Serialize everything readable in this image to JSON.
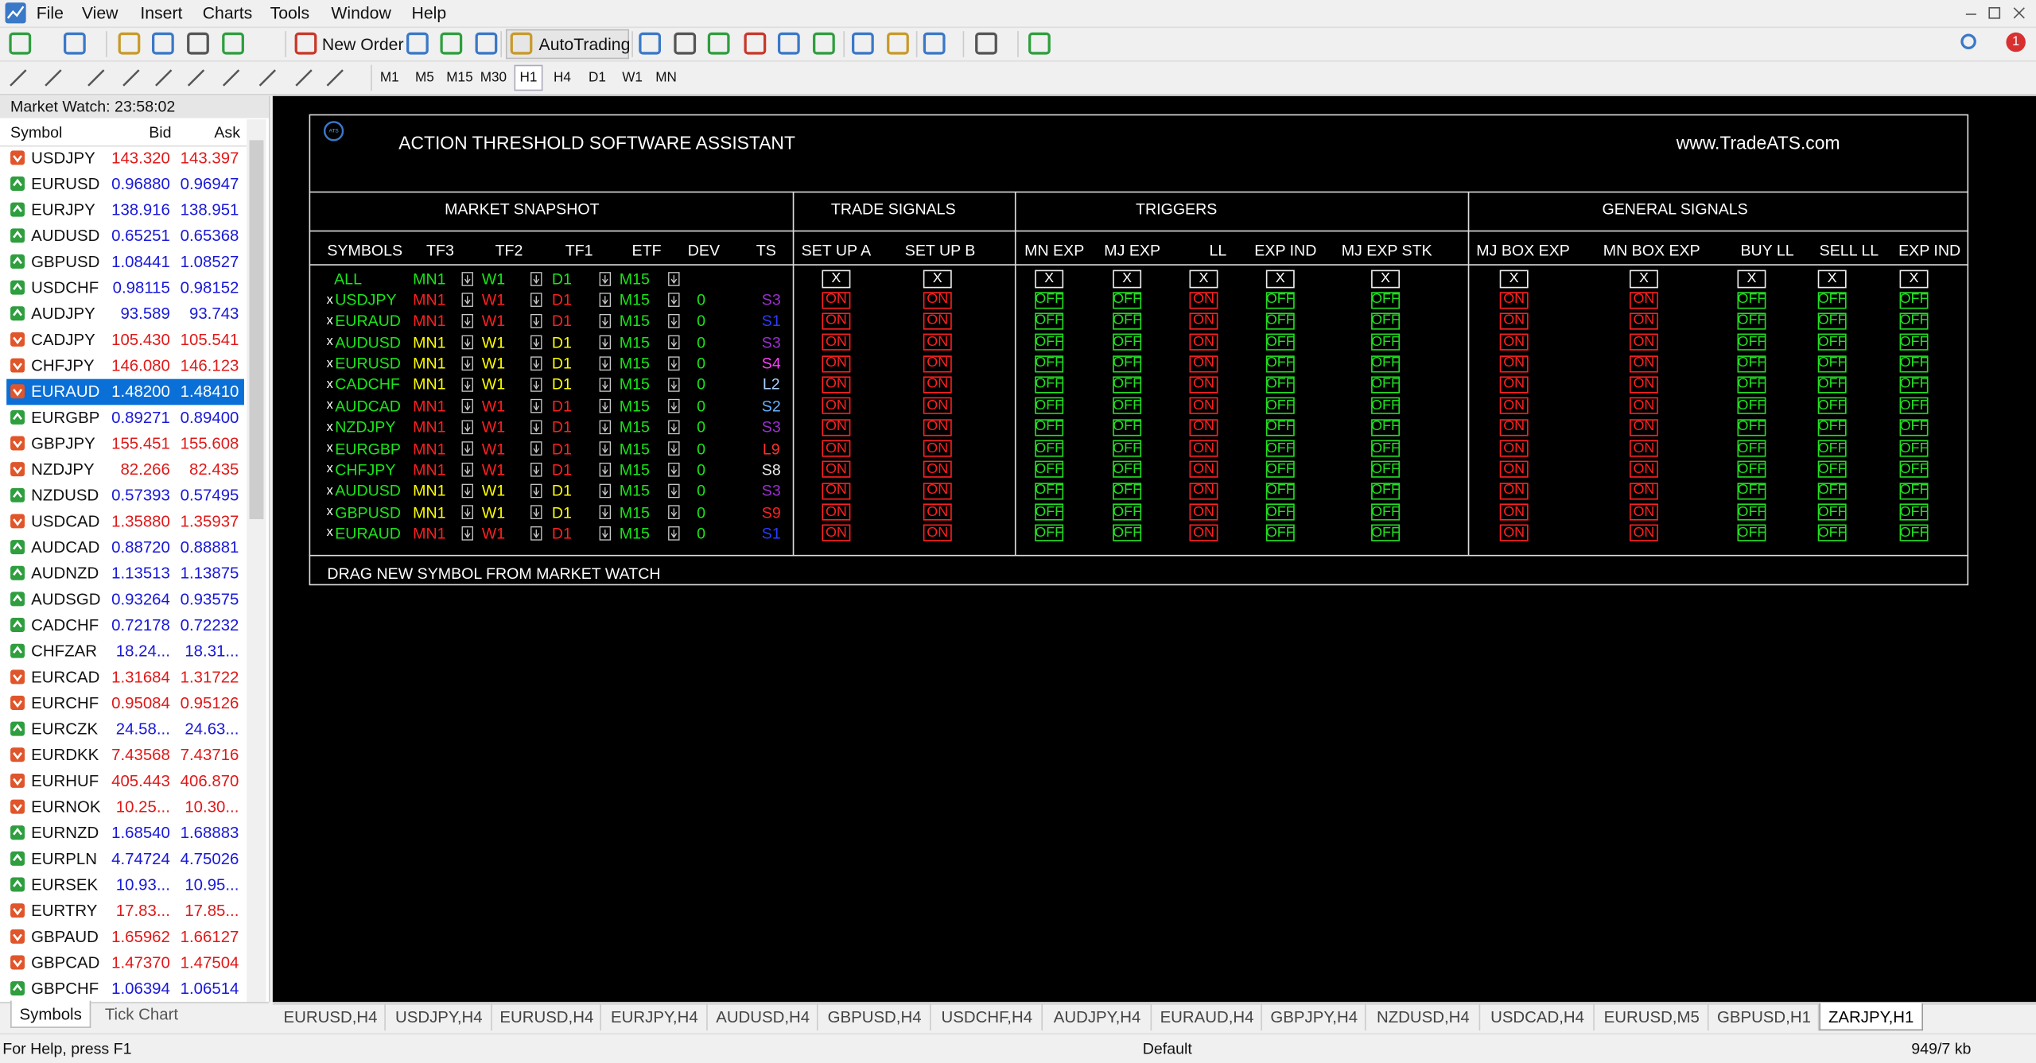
{
  "menu": {
    "items": [
      "File",
      "View",
      "Insert",
      "Charts",
      "Tools",
      "Window",
      "Help"
    ]
  },
  "toolbar": {
    "new_order": "New Order",
    "autotrading": "AutoTrading",
    "timeframes": [
      {
        "label": "M1",
        "active": false
      },
      {
        "label": "M5",
        "active": false
      },
      {
        "label": "M15",
        "active": false
      },
      {
        "label": "M30",
        "active": false
      },
      {
        "label": "H1",
        "active": true
      },
      {
        "label": "H4",
        "active": false
      },
      {
        "label": "D1",
        "active": false
      },
      {
        "label": "W1",
        "active": false
      },
      {
        "label": "MN",
        "active": false
      }
    ],
    "notifications": 1
  },
  "market_watch": {
    "title": "Market Watch: 23:58:02",
    "columns": [
      "Symbol",
      "Bid",
      "Ask"
    ],
    "trend_colors": {
      "up": {
        "price": "#1818d8",
        "icon": "#2e9e3e"
      },
      "down": {
        "price": "#e01818",
        "icon": "#e0552a"
      }
    },
    "rows": [
      {
        "symbol": "USDJPY",
        "bid": "143.320",
        "ask": "143.397",
        "trend": "down",
        "selected": false
      },
      {
        "symbol": "EURUSD",
        "bid": "0.96880",
        "ask": "0.96947",
        "trend": "up",
        "selected": false
      },
      {
        "symbol": "EURJPY",
        "bid": "138.916",
        "ask": "138.951",
        "trend": "up",
        "selected": false
      },
      {
        "symbol": "AUDUSD",
        "bid": "0.65251",
        "ask": "0.65368",
        "trend": "up",
        "selected": false
      },
      {
        "symbol": "GBPUSD",
        "bid": "1.08441",
        "ask": "1.08527",
        "trend": "up",
        "selected": false
      },
      {
        "symbol": "USDCHF",
        "bid": "0.98115",
        "ask": "0.98152",
        "trend": "up",
        "selected": false
      },
      {
        "symbol": "AUDJPY",
        "bid": "93.589",
        "ask": "93.743",
        "trend": "up",
        "selected": false
      },
      {
        "symbol": "CADJPY",
        "bid": "105.430",
        "ask": "105.541",
        "trend": "down",
        "selected": false
      },
      {
        "symbol": "CHFJPY",
        "bid": "146.080",
        "ask": "146.123",
        "trend": "down",
        "selected": false
      },
      {
        "symbol": "EURAUD",
        "bid": "1.48200",
        "ask": "1.48410",
        "trend": "down",
        "selected": true
      },
      {
        "symbol": "EURGBP",
        "bid": "0.89271",
        "ask": "0.89400",
        "trend": "up",
        "selected": false
      },
      {
        "symbol": "GBPJPY",
        "bid": "155.451",
        "ask": "155.608",
        "trend": "down",
        "selected": false
      },
      {
        "symbol": "NZDJPY",
        "bid": "82.266",
        "ask": "82.435",
        "trend": "down",
        "selected": false
      },
      {
        "symbol": "NZDUSD",
        "bid": "0.57393",
        "ask": "0.57495",
        "trend": "up",
        "selected": false
      },
      {
        "symbol": "USDCAD",
        "bid": "1.35880",
        "ask": "1.35937",
        "trend": "down",
        "selected": false
      },
      {
        "symbol": "AUDCAD",
        "bid": "0.88720",
        "ask": "0.88881",
        "trend": "up",
        "selected": false
      },
      {
        "symbol": "AUDNZD",
        "bid": "1.13513",
        "ask": "1.13875",
        "trend": "up",
        "selected": false
      },
      {
        "symbol": "AUDSGD",
        "bid": "0.93264",
        "ask": "0.93575",
        "trend": "up",
        "selected": false
      },
      {
        "symbol": "CADCHF",
        "bid": "0.72178",
        "ask": "0.72232",
        "trend": "up",
        "selected": false
      },
      {
        "symbol": "CHFZAR",
        "bid": "18.24...",
        "ask": "18.31...",
        "trend": "up",
        "selected": false
      },
      {
        "symbol": "EURCAD",
        "bid": "1.31684",
        "ask": "1.31722",
        "trend": "down",
        "selected": false
      },
      {
        "symbol": "EURCHF",
        "bid": "0.95084",
        "ask": "0.95126",
        "trend": "down",
        "selected": false
      },
      {
        "symbol": "EURCZK",
        "bid": "24.58...",
        "ask": "24.63...",
        "trend": "up",
        "selected": false
      },
      {
        "symbol": "EURDKK",
        "bid": "7.43568",
        "ask": "7.43716",
        "trend": "down",
        "selected": false
      },
      {
        "symbol": "EURHUF",
        "bid": "405.443",
        "ask": "406.870",
        "trend": "down",
        "selected": false
      },
      {
        "symbol": "EURNOK",
        "bid": "10.25...",
        "ask": "10.30...",
        "trend": "down",
        "selected": false
      },
      {
        "symbol": "EURNZD",
        "bid": "1.68540",
        "ask": "1.68883",
        "trend": "up",
        "selected": false
      },
      {
        "symbol": "EURPLN",
        "bid": "4.74724",
        "ask": "4.75026",
        "trend": "up",
        "selected": false
      },
      {
        "symbol": "EURSEK",
        "bid": "10.93...",
        "ask": "10.95...",
        "trend": "up",
        "selected": false
      },
      {
        "symbol": "EURTRY",
        "bid": "17.83...",
        "ask": "17.85...",
        "trend": "down",
        "selected": false
      },
      {
        "symbol": "GBPAUD",
        "bid": "1.65962",
        "ask": "1.66127",
        "trend": "down",
        "selected": false
      },
      {
        "symbol": "GBPCAD",
        "bid": "1.47370",
        "ask": "1.47504",
        "trend": "down",
        "selected": false
      },
      {
        "symbol": "GBPCHF",
        "bid": "1.06394",
        "ask": "1.06514",
        "trend": "up",
        "selected": false
      }
    ],
    "tabs": [
      {
        "label": "Symbols",
        "active": true
      },
      {
        "label": "Tick Chart",
        "active": false
      }
    ]
  },
  "ats_panel": {
    "logo": "ATS",
    "title": "ACTION THRESHOLD SOFTWARE ASSISTANT",
    "url": "www.TradeATS.com",
    "sections": [
      "MARKET SNAPSHOT",
      "TRADE SIGNALS",
      "TRIGGERS",
      "GENERAL SIGNALS"
    ],
    "columns": [
      "SYMBOLS",
      "TF3",
      "TF2",
      "TF1",
      "ETF",
      "DEV",
      "TS",
      "SET UP A",
      "SET UP B",
      "MN EXP",
      "MJ EXP",
      "LL",
      "EXP IND",
      "MJ EXP STK",
      "MJ BOX EXP",
      "MN BOX EXP",
      "BUY LL",
      "SELL LL",
      "EXP IND"
    ],
    "symbol_color": "#19e619",
    "state_colors": {
      "ON": "#ff2020",
      "OFF": "#22e022"
    },
    "all_row": {
      "label": "ALL",
      "color": "#19e619",
      "timeframes": [
        "MN1",
        "W1",
        "D1",
        "M15"
      ],
      "toggles": [
        "X",
        "X",
        "X",
        "X",
        "X",
        "X",
        "X",
        "X",
        "X",
        "X",
        "X",
        "X"
      ]
    },
    "rows": [
      {
        "remove": "x",
        "symbol": "USDJPY",
        "tf3": "MN1",
        "tf2": "W1",
        "tf1": "D1",
        "etf": "M15",
        "dev": "0",
        "ts": "S3",
        "tf_color": "#ff2020",
        "ts_color": "#9b30d0",
        "signals": [
          "ON",
          "ON",
          "OFF",
          "OFF",
          "ON",
          "OFF",
          "OFF",
          "ON",
          "ON",
          "OFF",
          "OFF",
          "OFF"
        ]
      },
      {
        "remove": "x",
        "symbol": "EURAUD",
        "tf3": "MN1",
        "tf2": "W1",
        "tf1": "D1",
        "etf": "M15",
        "dev": "0",
        "ts": "S1",
        "tf_color": "#ff2020",
        "ts_color": "#2a3cff",
        "signals": [
          "ON",
          "ON",
          "OFF",
          "OFF",
          "ON",
          "OFF",
          "OFF",
          "ON",
          "ON",
          "OFF",
          "OFF",
          "OFF"
        ]
      },
      {
        "remove": "x",
        "symbol": "AUDUSD",
        "tf3": "MN1",
        "tf2": "W1",
        "tf1": "D1",
        "etf": "M15",
        "dev": "0",
        "ts": "S3",
        "tf_color": "#ffff00",
        "ts_color": "#9b30d0",
        "signals": [
          "ON",
          "ON",
          "OFF",
          "OFF",
          "ON",
          "OFF",
          "OFF",
          "ON",
          "ON",
          "OFF",
          "OFF",
          "OFF"
        ]
      },
      {
        "remove": "x",
        "symbol": "EURUSD",
        "tf3": "MN1",
        "tf2": "W1",
        "tf1": "D1",
        "etf": "M15",
        "dev": "0",
        "ts": "S4",
        "tf_color": "#ffff00",
        "ts_color": "#ff40ff",
        "signals": [
          "ON",
          "ON",
          "OFF",
          "OFF",
          "ON",
          "OFF",
          "OFF",
          "ON",
          "ON",
          "OFF",
          "OFF",
          "OFF"
        ]
      },
      {
        "remove": "x",
        "symbol": "CADCHF",
        "tf3": "MN1",
        "tf2": "W1",
        "tf1": "D1",
        "etf": "M15",
        "dev": "0",
        "ts": "L2",
        "tf_color": "#ffff00",
        "ts_color": "#a8d0ff",
        "signals": [
          "ON",
          "ON",
          "OFF",
          "OFF",
          "ON",
          "OFF",
          "OFF",
          "ON",
          "ON",
          "OFF",
          "OFF",
          "OFF"
        ]
      },
      {
        "remove": "x",
        "symbol": "AUDCAD",
        "tf3": "MN1",
        "tf2": "W1",
        "tf1": "D1",
        "etf": "M15",
        "dev": "0",
        "ts": "S2",
        "tf_color": "#ff2020",
        "ts_color": "#6ab0ff",
        "signals": [
          "ON",
          "ON",
          "OFF",
          "OFF",
          "ON",
          "OFF",
          "OFF",
          "ON",
          "ON",
          "OFF",
          "OFF",
          "OFF"
        ]
      },
      {
        "remove": "x",
        "symbol": "NZDJPY",
        "tf3": "MN1",
        "tf2": "W1",
        "tf1": "D1",
        "etf": "M15",
        "dev": "0",
        "ts": "S3",
        "tf_color": "#ff2020",
        "ts_color": "#9b30d0",
        "signals": [
          "ON",
          "ON",
          "OFF",
          "OFF",
          "ON",
          "OFF",
          "OFF",
          "ON",
          "ON",
          "OFF",
          "OFF",
          "OFF"
        ]
      },
      {
        "remove": "x",
        "symbol": "EURGBP",
        "tf3": "MN1",
        "tf2": "W1",
        "tf1": "D1",
        "etf": "M15",
        "dev": "0",
        "ts": "L9",
        "tf_color": "#ff2020",
        "ts_color": "#ff3030",
        "signals": [
          "ON",
          "ON",
          "OFF",
          "OFF",
          "ON",
          "OFF",
          "OFF",
          "ON",
          "ON",
          "OFF",
          "OFF",
          "OFF"
        ]
      },
      {
        "remove": "x",
        "symbol": "CHFJPY",
        "tf3": "MN1",
        "tf2": "W1",
        "tf1": "D1",
        "etf": "M15",
        "dev": "0",
        "ts": "S8",
        "tf_color": "#ff2020",
        "ts_color": "#e8e8e8",
        "signals": [
          "ON",
          "ON",
          "OFF",
          "OFF",
          "ON",
          "OFF",
          "OFF",
          "ON",
          "ON",
          "OFF",
          "OFF",
          "OFF"
        ]
      },
      {
        "remove": "x",
        "symbol": "AUDUSD",
        "tf3": "MN1",
        "tf2": "W1",
        "tf1": "D1",
        "etf": "M15",
        "dev": "0",
        "ts": "S3",
        "tf_color": "#ffff00",
        "ts_color": "#9b30d0",
        "signals": [
          "ON",
          "ON",
          "OFF",
          "OFF",
          "ON",
          "OFF",
          "OFF",
          "ON",
          "ON",
          "OFF",
          "OFF",
          "OFF"
        ]
      },
      {
        "remove": "x",
        "symbol": "GBPUSD",
        "tf3": "MN1",
        "tf2": "W1",
        "tf1": "D1",
        "etf": "M15",
        "dev": "0",
        "ts": "S9",
        "tf_color": "#ffff00",
        "ts_color": "#ff2020",
        "signals": [
          "ON",
          "ON",
          "OFF",
          "OFF",
          "ON",
          "OFF",
          "OFF",
          "ON",
          "ON",
          "OFF",
          "OFF",
          "OFF"
        ]
      },
      {
        "remove": "x",
        "symbol": "EURAUD",
        "tf3": "MN1",
        "tf2": "W1",
        "tf1": "D1",
        "etf": "M15",
        "dev": "0",
        "ts": "S1",
        "tf_color": "#ff2020",
        "ts_color": "#2a3cff",
        "signals": [
          "ON",
          "ON",
          "OFF",
          "OFF",
          "ON",
          "OFF",
          "OFF",
          "ON",
          "ON",
          "OFF",
          "OFF",
          "OFF"
        ]
      }
    ],
    "footer": "DRAG NEW SYMBOL FROM MARKET WATCH"
  },
  "chart_tabs": [
    {
      "label": "EURUSD,H4",
      "active": false
    },
    {
      "label": "USDJPY,H4",
      "active": false
    },
    {
      "label": "EURUSD,H4",
      "active": false
    },
    {
      "label": "EURJPY,H4",
      "active": false
    },
    {
      "label": "AUDUSD,H4",
      "active": false
    },
    {
      "label": "GBPUSD,H4",
      "active": false
    },
    {
      "label": "USDCHF,H4",
      "active": false
    },
    {
      "label": "AUDJPY,H4",
      "active": false
    },
    {
      "label": "EURAUD,H4",
      "active": false
    },
    {
      "label": "GBPJPY,H4",
      "active": false
    },
    {
      "label": "NZDUSD,H4",
      "active": false
    },
    {
      "label": "USDCAD,H4",
      "active": false
    },
    {
      "label": "EURUSD,M5",
      "active": false
    },
    {
      "label": "GBPUSD,H1",
      "active": false
    },
    {
      "label": "ZARJPY,H1",
      "active": true
    }
  ],
  "status_bar": {
    "help": "For Help, press F1",
    "profile": "Default",
    "traffic": "949/7 kb"
  }
}
